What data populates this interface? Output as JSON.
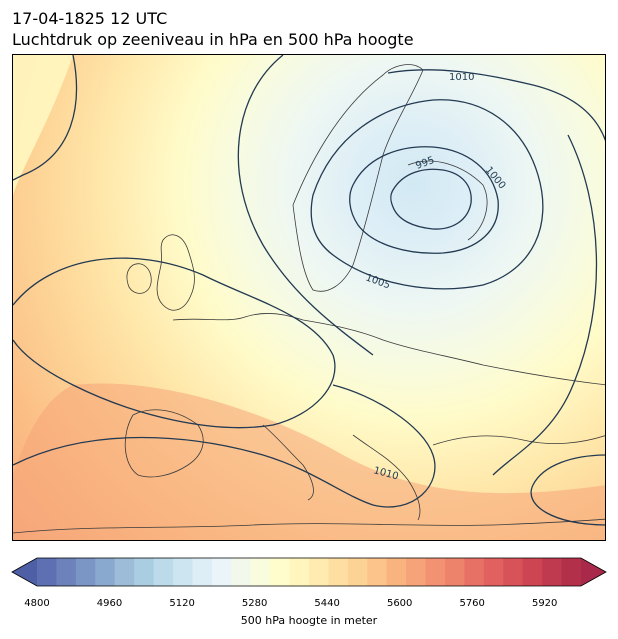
{
  "header": {
    "datetime": "17-04-1825 12 UTC",
    "subtitle": "Luchtdruk op zeeniveau in hPa en 500 hPa hoogte"
  },
  "map": {
    "isobar_labels": [
      "1010",
      "995",
      "1000",
      "1005",
      "1010"
    ],
    "colors": {
      "land_outline": "#3a3a3a",
      "isobar": "#233a52",
      "low_fill": "#d5ebf4",
      "warm_fill": "#f6a479"
    }
  },
  "colorbar": {
    "label": "500 hPa hoogte in meter",
    "min": 4800,
    "max": 5960,
    "step": 40,
    "ticks": [
      "4800",
      "4960",
      "5120",
      "5280",
      "5440",
      "5600",
      "5760",
      "5920"
    ],
    "colors": [
      "#5e6fb2",
      "#6d82bb",
      "#7b95c4",
      "#8aa9cf",
      "#9cbcd8",
      "#aacde2",
      "#bcdaea",
      "#cde4f1",
      "#ddeef6",
      "#ebf5f9",
      "#f3f9ea",
      "#fafcde",
      "#fffdcc",
      "#fff5bd",
      "#ffebaf",
      "#fedfa1",
      "#fdd295",
      "#fcc38a",
      "#f9b37f",
      "#f6a379",
      "#f39272",
      "#ee836b",
      "#e87165",
      "#e0615f",
      "#d85259",
      "#cd4553",
      "#c03a4f",
      "#b3304b"
    ],
    "extend": "both"
  }
}
